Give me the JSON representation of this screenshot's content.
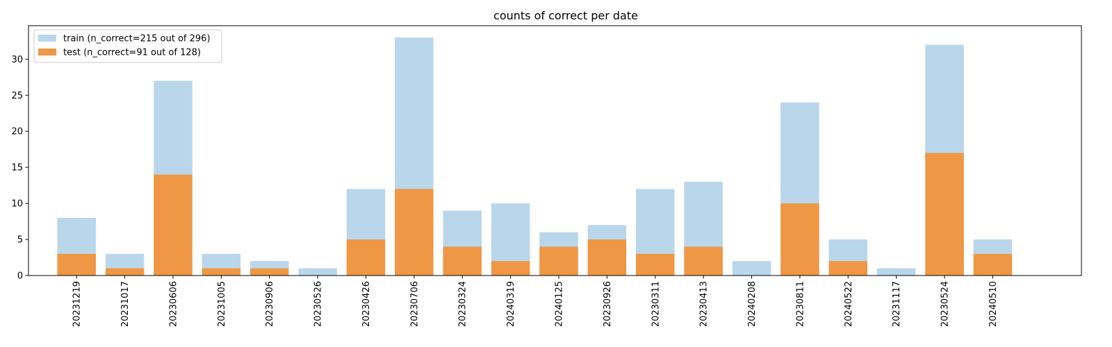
{
  "chart_data": {
    "type": "bar",
    "title": "counts of correct per date",
    "xlabel": "",
    "ylabel": "",
    "ylim": [
      0,
      34.65
    ],
    "yticks": [
      0,
      5,
      10,
      15,
      20,
      25,
      30
    ],
    "grid": false,
    "legend_position": "top-left",
    "categories": [
      "20231219",
      "20231017",
      "20230606",
      "20231005",
      "20230906",
      "20230526",
      "20230426",
      "20230706",
      "20230324",
      "20240319",
      "20240125",
      "20230926",
      "20230311",
      "20230413",
      "20240208",
      "20230811",
      "20240522",
      "20231117",
      "20230524",
      "20240510"
    ],
    "series": [
      {
        "name": "train (n_correct=215 out of 296)",
        "color": "#bad6ea",
        "values": [
          8,
          3,
          27,
          3,
          2,
          1,
          12,
          33,
          9,
          10,
          6,
          7,
          12,
          13,
          2,
          24,
          5,
          1,
          32,
          5
        ]
      },
      {
        "name": "test (n_correct=91 out of 128)",
        "color": "#ef9745",
        "values": [
          3,
          1,
          14,
          1,
          1,
          0,
          5,
          12,
          4,
          2,
          4,
          5,
          3,
          4,
          0,
          10,
          2,
          0,
          17,
          3
        ]
      }
    ]
  }
}
